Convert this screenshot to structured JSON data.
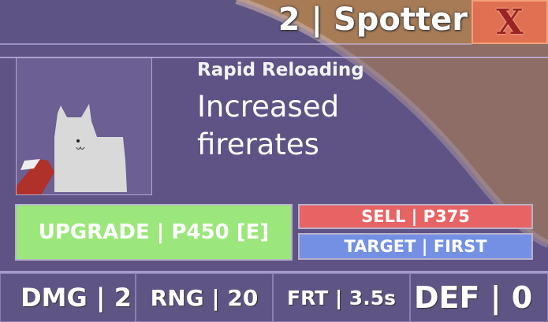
{
  "header": {
    "title": "2 | Spotter",
    "close_label": "X"
  },
  "upgrade": {
    "name": "Rapid Reloading",
    "description": "Increased firerates"
  },
  "actions": {
    "upgrade_label": "UPGRADE | P450 [E]",
    "sell_label": "SELL | P375",
    "target_label": "TARGET | FIRST"
  },
  "stats": [
    {
      "label": "DMG | 2"
    },
    {
      "label": "RNG | 20"
    },
    {
      "label": "FRT | 3.5s"
    },
    {
      "label": "DEF | 0"
    }
  ],
  "colors": {
    "panel": "#5e5484",
    "sand": "#a77b56",
    "upgrade": "#9be77b",
    "sell": "#e86364",
    "target": "#7490e5",
    "close": "#e07052"
  }
}
